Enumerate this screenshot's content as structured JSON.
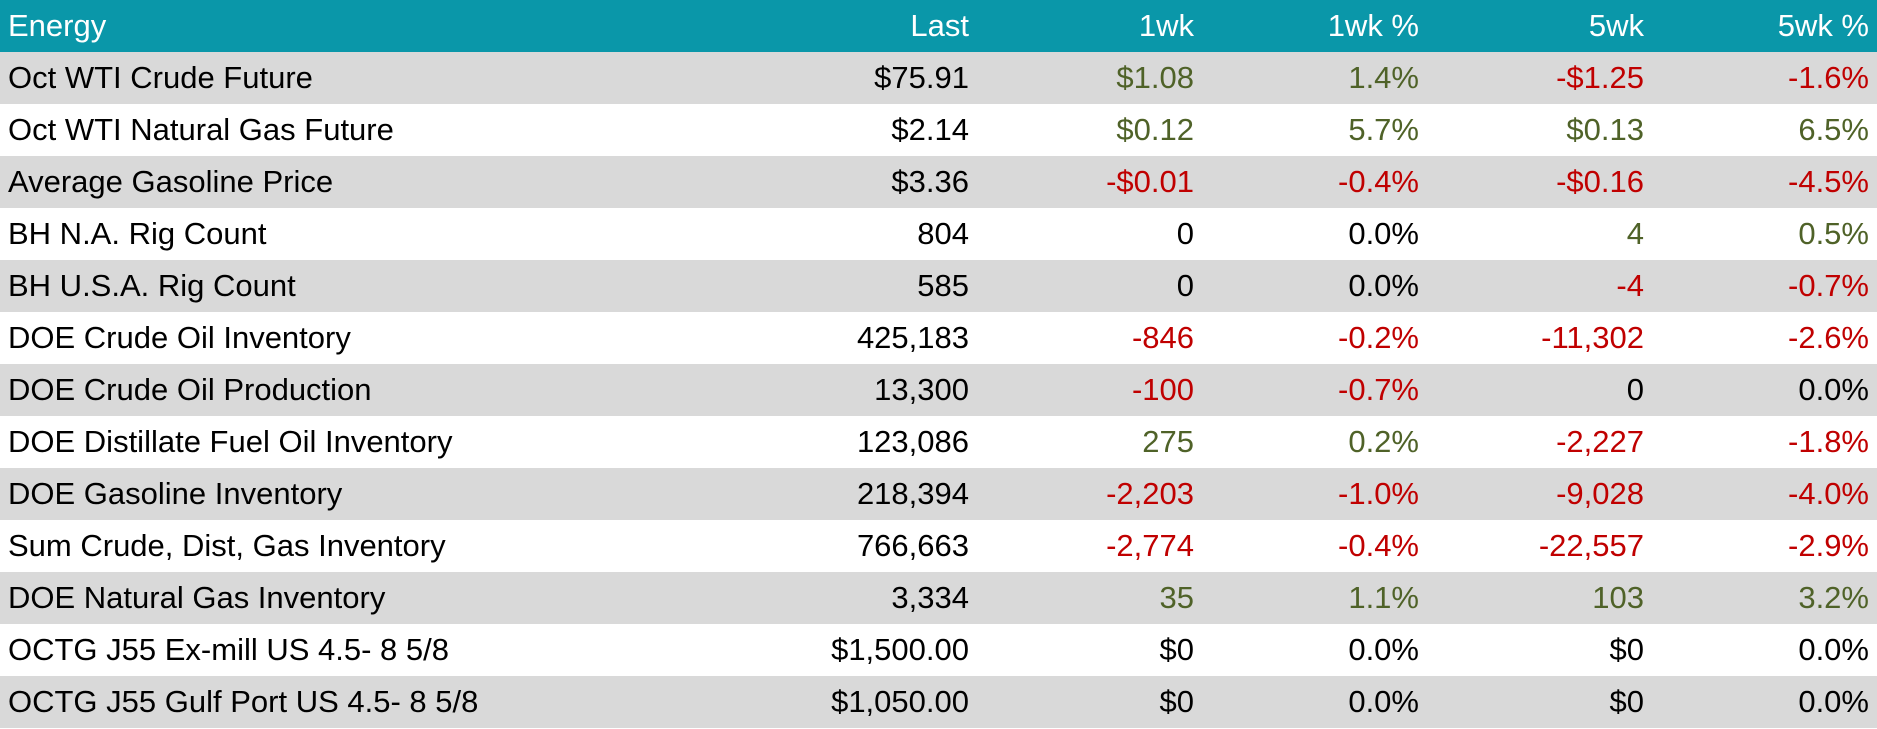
{
  "table": {
    "header": [
      "Energy",
      "Last",
      "1wk",
      "1wk %",
      "5wk",
      "5wk %"
    ],
    "rows": [
      [
        "Oct WTI Crude Future",
        "$75.91",
        "$1.08",
        "1.4%",
        "-$1.25",
        "-1.6%"
      ],
      [
        "Oct WTI Natural Gas Future",
        "$2.14",
        "$0.12",
        "5.7%",
        "$0.13",
        "6.5%"
      ],
      [
        "Average Gasoline Price",
        "$3.36",
        "-$0.01",
        "-0.4%",
        "-$0.16",
        "-4.5%"
      ],
      [
        "BH N.A. Rig Count",
        "804",
        "0",
        "0.0%",
        "4",
        "0.5%"
      ],
      [
        "BH U.S.A. Rig Count",
        "585",
        "0",
        "0.0%",
        "-4",
        "-0.7%"
      ],
      [
        "DOE Crude Oil Inventory",
        "425,183",
        "-846",
        "-0.2%",
        "-11,302",
        "-2.6%"
      ],
      [
        "DOE Crude Oil Production",
        "13,300",
        "-100",
        "-0.7%",
        "0",
        "0.0%"
      ],
      [
        "DOE Distillate Fuel Oil Inventory",
        "123,086",
        "275",
        "0.2%",
        "-2,227",
        "-1.8%"
      ],
      [
        "DOE Gasoline Inventory",
        "218,394",
        "-2,203",
        "-1.0%",
        "-9,028",
        "-4.0%"
      ],
      [
        "Sum Crude, Dist, Gas Inventory",
        "766,663",
        "-2,774",
        "-0.4%",
        "-22,557",
        "-2.9%"
      ],
      [
        "DOE Natural Gas Inventory",
        "3,334",
        "35",
        "1.1%",
        "103",
        "3.2%"
      ],
      [
        "OCTG J55 Ex-mill US 4.5- 8 5/8",
        "$1,500.00",
        "$0",
        "0.0%",
        "$0",
        "0.0%"
      ],
      [
        "OCTG J55 Gulf Port US 4.5- 8 5/8",
        "$1,050.00",
        "$0",
        "0.0%",
        "$0",
        "0.0%"
      ]
    ]
  }
}
